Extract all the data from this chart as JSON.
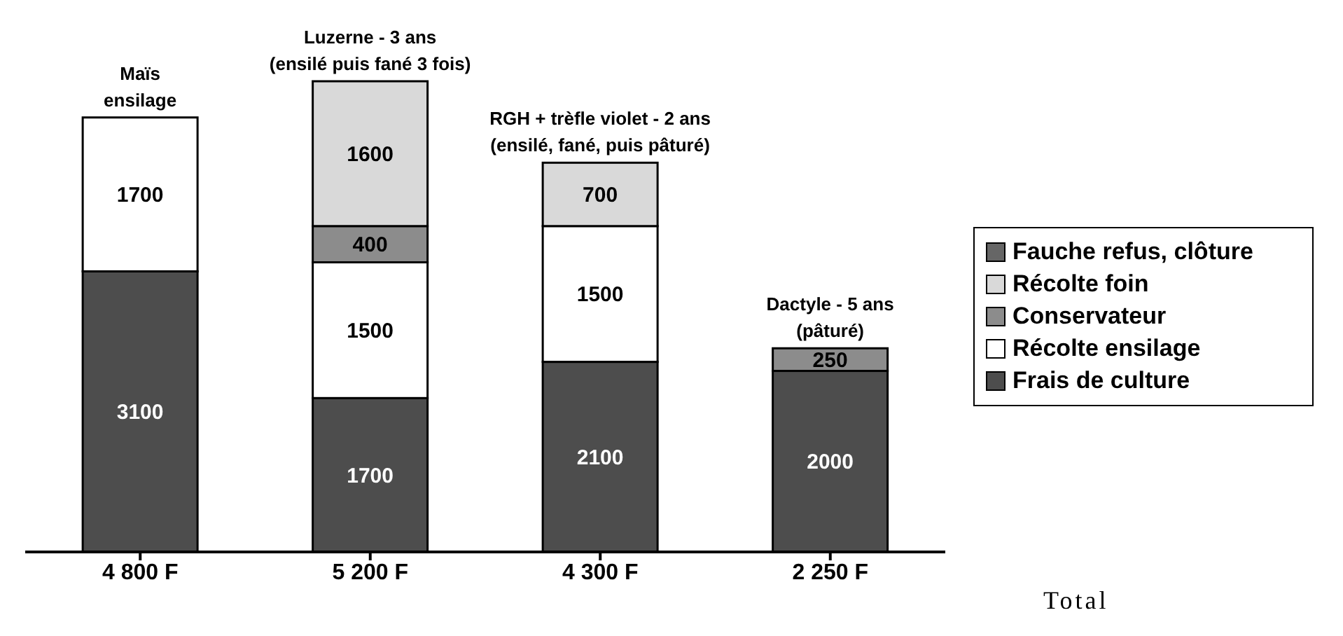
{
  "chart_data": {
    "type": "bar",
    "stacked": true,
    "data_labels": true,
    "legend": "right",
    "xlabel": "Total",
    "categories": [
      "Maïs\nensilage",
      "Luzerne - 3 ans\n(ensilé puis fané 3 fois)",
      "RGH + trèfle violet - 2 ans\n(ensilé, fané, puis pâturé)",
      "Dactyle - 5 ans\n(pâturé)"
    ],
    "totals": [
      "4 800 F",
      "5 200 F",
      "4 300 F",
      "2 250 F"
    ],
    "series": [
      {
        "name": "Frais de culture",
        "color": "#4d4d4d",
        "values": [
          3100,
          1700,
          2100,
          2000
        ]
      },
      {
        "name": "Récolte ensilage",
        "color": "#ffffff",
        "values": [
          1700,
          1500,
          1500,
          null
        ]
      },
      {
        "name": "Conservateur",
        "color": "#8c8c8c",
        "values": [
          null,
          400,
          null,
          250
        ]
      },
      {
        "name": "Récolte foin",
        "color": "#d9d9d9",
        "values": [
          null,
          1600,
          700,
          null
        ]
      },
      {
        "name": "Fauche refus, clôture",
        "color": "#666666",
        "values": [
          null,
          null,
          null,
          null
        ]
      }
    ]
  }
}
